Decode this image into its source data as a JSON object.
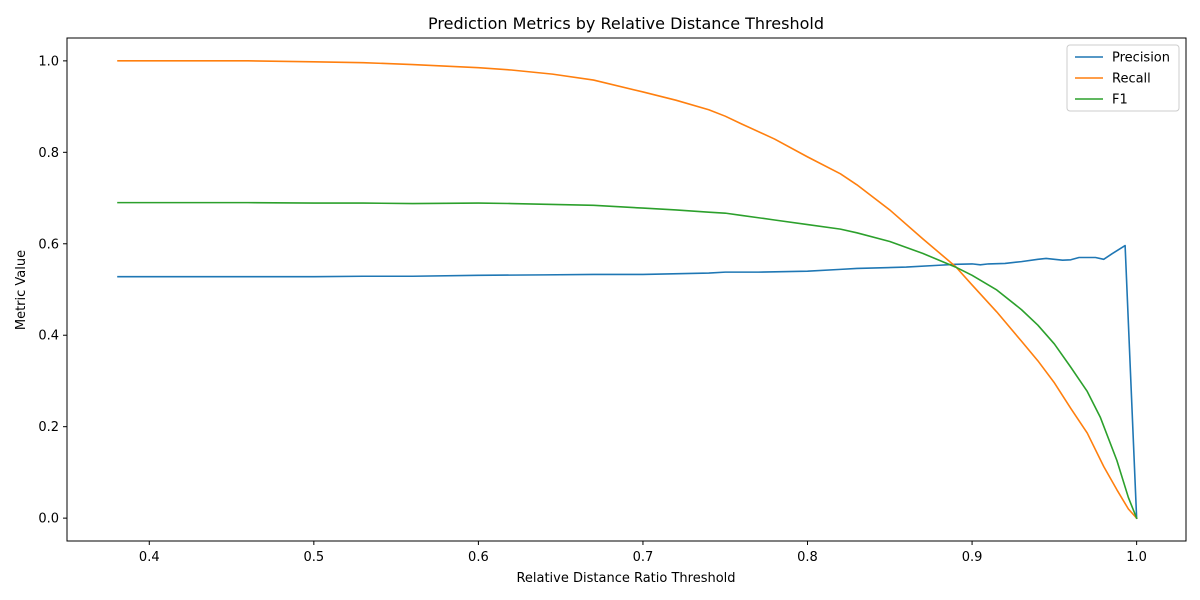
{
  "chart_data": {
    "type": "line",
    "title": "Prediction Metrics by Relative Distance Threshold",
    "xlabel": "Relative Distance Ratio Threshold",
    "ylabel": "Metric Value",
    "xlim": [
      0.35,
      1.03
    ],
    "ylim": [
      -0.05,
      1.05
    ],
    "xticks": [
      0.4,
      0.5,
      0.6,
      0.7,
      0.8,
      0.9,
      1.0
    ],
    "xtick_labels": [
      "0.4",
      "0.5",
      "0.6",
      "0.7",
      "0.8",
      "0.9",
      "1.0"
    ],
    "yticks": [
      0.0,
      0.2,
      0.4,
      0.6,
      0.8,
      1.0
    ],
    "ytick_labels": [
      "0.0",
      "0.2",
      "0.4",
      "0.6",
      "0.8",
      "1.0"
    ],
    "grid": false,
    "legend_position": "top-right",
    "series": [
      {
        "name": "Precision",
        "color": "#1f77b4",
        "points": [
          [
            0.381,
            0.528
          ],
          [
            0.42,
            0.528
          ],
          [
            0.46,
            0.528
          ],
          [
            0.5,
            0.528
          ],
          [
            0.53,
            0.529
          ],
          [
            0.56,
            0.529
          ],
          [
            0.6,
            0.531
          ],
          [
            0.64,
            0.532
          ],
          [
            0.67,
            0.533
          ],
          [
            0.7,
            0.533
          ],
          [
            0.74,
            0.536
          ],
          [
            0.75,
            0.538
          ],
          [
            0.77,
            0.538
          ],
          [
            0.8,
            0.54
          ],
          [
            0.82,
            0.544
          ],
          [
            0.83,
            0.546
          ],
          [
            0.86,
            0.549
          ],
          [
            0.88,
            0.553
          ],
          [
            0.89,
            0.555
          ],
          [
            0.9,
            0.556
          ],
          [
            0.905,
            0.554
          ],
          [
            0.91,
            0.556
          ],
          [
            0.92,
            0.557
          ],
          [
            0.93,
            0.561
          ],
          [
            0.94,
            0.566
          ],
          [
            0.945,
            0.568
          ],
          [
            0.95,
            0.566
          ],
          [
            0.955,
            0.564
          ],
          [
            0.96,
            0.565
          ],
          [
            0.965,
            0.57
          ],
          [
            0.97,
            0.57
          ],
          [
            0.975,
            0.57
          ],
          [
            0.98,
            0.566
          ],
          [
            0.985,
            0.578
          ],
          [
            0.993,
            0.596
          ],
          [
            1.0,
            0.0
          ]
        ]
      },
      {
        "name": "Recall",
        "color": "#ff7f0e",
        "points": [
          [
            0.381,
            1.0
          ],
          [
            0.42,
            1.0
          ],
          [
            0.46,
            1.0
          ],
          [
            0.5,
            0.998
          ],
          [
            0.53,
            0.996
          ],
          [
            0.56,
            0.992
          ],
          [
            0.6,
            0.985
          ],
          [
            0.62,
            0.98
          ],
          [
            0.645,
            0.971
          ],
          [
            0.67,
            0.958
          ],
          [
            0.7,
            0.932
          ],
          [
            0.72,
            0.914
          ],
          [
            0.74,
            0.893
          ],
          [
            0.75,
            0.879
          ],
          [
            0.76,
            0.862
          ],
          [
            0.78,
            0.829
          ],
          [
            0.8,
            0.79
          ],
          [
            0.82,
            0.753
          ],
          [
            0.83,
            0.729
          ],
          [
            0.85,
            0.674
          ],
          [
            0.87,
            0.611
          ],
          [
            0.89,
            0.55
          ],
          [
            0.9,
            0.51
          ],
          [
            0.915,
            0.451
          ],
          [
            0.93,
            0.387
          ],
          [
            0.94,
            0.344
          ],
          [
            0.95,
            0.296
          ],
          [
            0.96,
            0.24
          ],
          [
            0.97,
            0.186
          ],
          [
            0.98,
            0.113
          ],
          [
            0.988,
            0.062
          ],
          [
            0.995,
            0.02
          ],
          [
            1.0,
            0.0
          ]
        ]
      },
      {
        "name": "F1",
        "color": "#2ca02c",
        "points": [
          [
            0.381,
            0.69
          ],
          [
            0.42,
            0.69
          ],
          [
            0.46,
            0.69
          ],
          [
            0.5,
            0.689
          ],
          [
            0.53,
            0.689
          ],
          [
            0.56,
            0.688
          ],
          [
            0.6,
            0.689
          ],
          [
            0.62,
            0.688
          ],
          [
            0.645,
            0.686
          ],
          [
            0.67,
            0.684
          ],
          [
            0.7,
            0.678
          ],
          [
            0.72,
            0.674
          ],
          [
            0.74,
            0.669
          ],
          [
            0.75,
            0.667
          ],
          [
            0.76,
            0.662
          ],
          [
            0.78,
            0.652
          ],
          [
            0.8,
            0.642
          ],
          [
            0.82,
            0.632
          ],
          [
            0.83,
            0.624
          ],
          [
            0.85,
            0.605
          ],
          [
            0.87,
            0.579
          ],
          [
            0.89,
            0.549
          ],
          [
            0.9,
            0.531
          ],
          [
            0.915,
            0.499
          ],
          [
            0.93,
            0.456
          ],
          [
            0.94,
            0.422
          ],
          [
            0.95,
            0.381
          ],
          [
            0.96,
            0.33
          ],
          [
            0.97,
            0.277
          ],
          [
            0.978,
            0.22
          ],
          [
            0.988,
            0.126
          ],
          [
            0.995,
            0.045
          ],
          [
            1.0,
            0.0
          ]
        ]
      }
    ]
  }
}
